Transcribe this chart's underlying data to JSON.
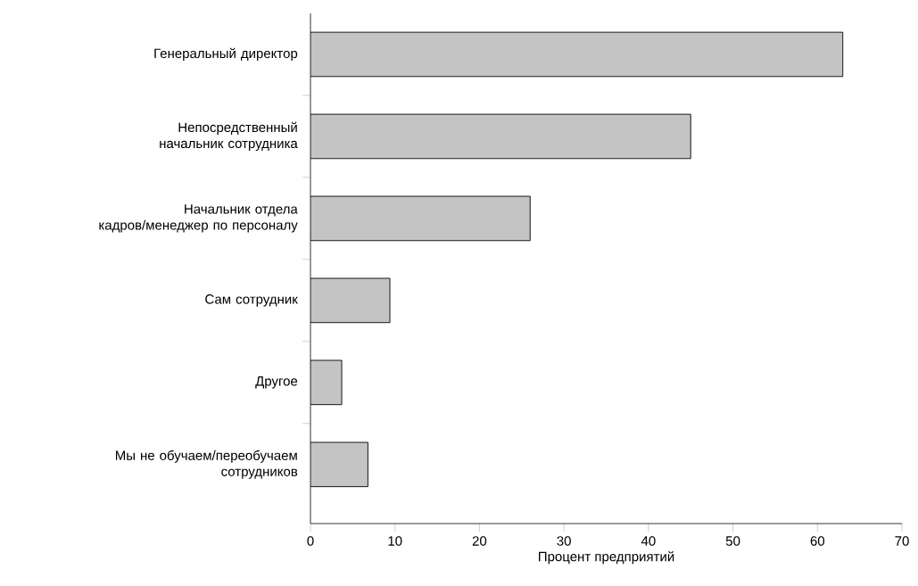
{
  "chart_data": {
    "type": "bar",
    "orientation": "horizontal",
    "categories": [
      "Генеральный директор",
      "Непосредственный начальник сотрудника",
      "Начальник отдела кадров/менеджер по персоналу",
      "Сам сотрудник",
      "Другое",
      "Мы не обучаем/переобучаем сотрудников"
    ],
    "values": [
      63.0,
      45.0,
      26.0,
      9.4,
      3.7,
      6.8
    ],
    "color": "#c4c4c4",
    "xlabel": "Процент предприятий",
    "xlim": [
      0,
      70
    ],
    "xticks": [
      0,
      10,
      20,
      30,
      40,
      50,
      60,
      70
    ]
  }
}
